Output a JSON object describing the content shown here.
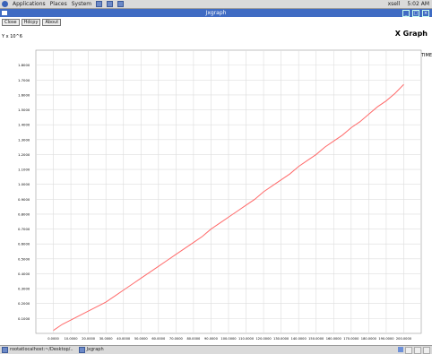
{
  "top_panel": {
    "menus": [
      "Applications",
      "Places",
      "System"
    ],
    "right_text": [
      "xsell",
      "5:02 AM"
    ]
  },
  "window": {
    "title": "Jxgraph",
    "buttons": [
      "Close",
      "Hdcpy",
      "About"
    ]
  },
  "graph": {
    "title": "X Graph",
    "y_units": "Y x 10^6",
    "x_units": "TIME"
  },
  "chart_data": {
    "type": "line",
    "title": "X Graph",
    "xlabel": "",
    "ylabel": "",
    "xlim": [
      -10000,
      210000
    ],
    "ylim": [
      0,
      1.9
    ],
    "x_ticks": [
      0,
      10000,
      20000,
      30000,
      40000,
      50000,
      60000,
      70000,
      80000,
      90000,
      100000,
      110000,
      120000,
      130000,
      140000,
      150000,
      160000,
      170000,
      180000,
      190000,
      200000
    ],
    "x_tick_labels": [
      "0.0000",
      "10.0000",
      "20.0000",
      "30.0000",
      "40.0000",
      "50.0000",
      "60.0000",
      "70.0000",
      "80.0000",
      "90.0000",
      "100.0000",
      "110.0000",
      "120.0000",
      "130.0000",
      "140.0000",
      "150.0000",
      "160.0000",
      "170.0000",
      "180.0000",
      "190.0000",
      "200.0000"
    ],
    "y_ticks": [
      0.1,
      0.2,
      0.3,
      0.4,
      0.5,
      0.6,
      0.7,
      0.8,
      0.9,
      1.0,
      1.1,
      1.2,
      1.3,
      1.4,
      1.5,
      1.6,
      1.7,
      1.8
    ],
    "y_tick_labels": [
      "0.1000",
      "0.2000",
      "0.3000",
      "0.4000",
      "0.5000",
      "0.6000",
      "0.7000",
      "0.8000",
      "0.9000",
      "1.0000",
      "1.1000",
      "1.2000",
      "1.3000",
      "1.4000",
      "1.5000",
      "1.6000",
      "1.7000",
      "1.8000"
    ],
    "grid": true,
    "series": [
      {
        "color": "#ff6a6a",
        "x": [
          0,
          5000,
          10000,
          15000,
          20000,
          25000,
          30000,
          35000,
          40000,
          45000,
          50000,
          55000,
          60000,
          65000,
          70000,
          75000,
          80000,
          85000,
          90000,
          95000,
          100000,
          105000,
          110000,
          115000,
          120000,
          125000,
          130000,
          135000,
          140000,
          145000,
          150000,
          155000,
          160000,
          165000,
          170000,
          175000,
          180000,
          185000,
          190000,
          195000,
          200000
        ],
        "y": [
          0.02,
          0.06,
          0.09,
          0.12,
          0.15,
          0.18,
          0.21,
          0.25,
          0.29,
          0.33,
          0.37,
          0.41,
          0.45,
          0.49,
          0.53,
          0.57,
          0.61,
          0.65,
          0.7,
          0.74,
          0.78,
          0.82,
          0.86,
          0.9,
          0.95,
          0.99,
          1.03,
          1.07,
          1.12,
          1.16,
          1.2,
          1.25,
          1.29,
          1.33,
          1.38,
          1.42,
          1.47,
          1.52,
          1.56,
          1.61,
          1.67
        ]
      }
    ]
  },
  "taskbar": {
    "items": [
      "rootatlocalhost:~/Desktop/..",
      "Jxgraph"
    ]
  },
  "colors": {
    "title_bar": "#3f6bc3",
    "line": "#ff6a6a",
    "grid": "#dddddd"
  }
}
